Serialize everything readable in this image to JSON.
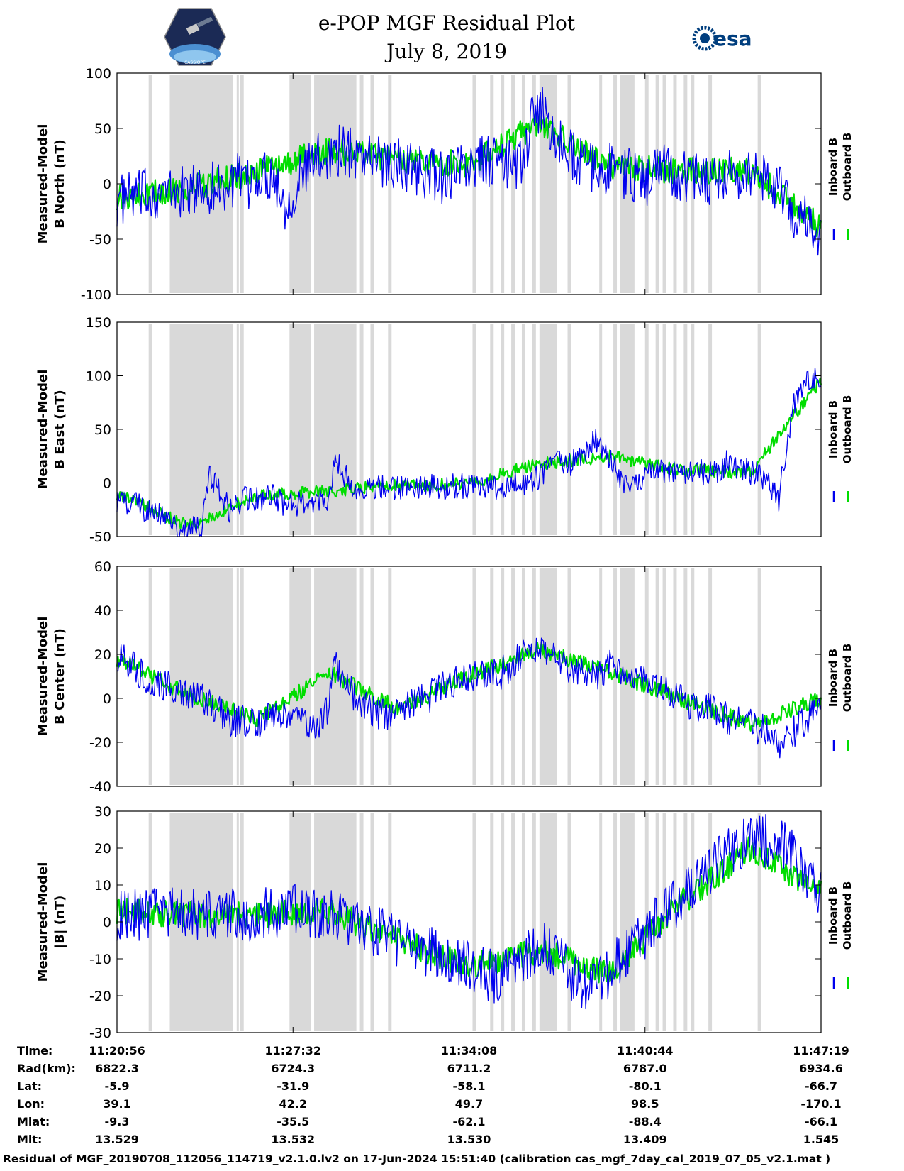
{
  "header": {
    "title": "e-POP MGF Residual Plot",
    "date": "July 8, 2019",
    "logo_left_text": "CASSIOPE",
    "logo_right_text": "esa"
  },
  "colors": {
    "inboard": "#0000ee",
    "outboard": "#00dd00",
    "gap": "#d9d9d9"
  },
  "chart_data": [
    {
      "type": "line",
      "ylabel": [
        "Measured-Model",
        "B North (nT)"
      ],
      "ylim": [
        -100,
        100
      ],
      "yticks": [
        "100",
        "50",
        "0",
        "-50",
        "-100"
      ],
      "legend": [
        "Inboard B",
        "Outboard B"
      ],
      "series": [
        {
          "name": "Inboard B",
          "x": [
            0,
            2,
            4,
            6,
            8,
            10,
            12,
            14,
            16,
            17,
            18,
            19,
            20,
            22,
            24,
            26,
            28,
            30,
            32,
            34,
            36,
            38,
            40,
            42,
            44,
            46,
            48,
            50,
            52,
            54,
            56,
            58,
            59,
            60,
            61,
            62,
            64,
            66,
            68,
            70,
            72,
            74,
            76,
            77,
            78,
            80,
            82,
            84,
            86,
            88,
            90,
            92,
            94,
            95,
            96,
            98,
            100
          ],
          "y": [
            -15,
            -12,
            -10,
            -8,
            -8,
            -7,
            -5,
            -3,
            -2,
            5,
            -5,
            0,
            8,
            10,
            -20,
            5,
            20,
            28,
            30,
            28,
            25,
            20,
            18,
            15,
            10,
            5,
            12,
            15,
            20,
            20,
            15,
            25,
            60,
            70,
            55,
            40,
            30,
            20,
            10,
            15,
            10,
            5,
            0,
            20,
            15,
            5,
            10,
            5,
            8,
            5,
            10,
            5,
            0,
            -20,
            -25,
            -35,
            -45
          ]
        },
        {
          "name": "Outboard B",
          "x": [
            0,
            10,
            20,
            30,
            40,
            50,
            60,
            70,
            80,
            90,
            100
          ],
          "y": [
            -12,
            -5,
            12,
            30,
            22,
            18,
            55,
            15,
            12,
            12,
            -40
          ]
        }
      ]
    },
    {
      "type": "line",
      "ylabel": [
        "Measured-Model",
        "B East (nT)"
      ],
      "ylim": [
        -50,
        150
      ],
      "yticks": [
        "150",
        "100",
        "50",
        "0",
        "-50"
      ],
      "legend": [
        "Inboard B",
        "Outboard B"
      ],
      "series": [
        {
          "name": "Inboard B",
          "x": [
            0,
            2,
            4,
            6,
            8,
            10,
            12,
            13,
            14,
            16,
            18,
            20,
            22,
            24,
            26,
            28,
            30,
            31,
            32,
            34,
            36,
            38,
            40,
            42,
            44,
            46,
            48,
            50,
            52,
            54,
            56,
            58,
            60,
            62,
            64,
            66,
            68,
            70,
            72,
            74,
            76,
            78,
            80,
            82,
            84,
            86,
            87,
            88,
            90,
            92,
            94,
            96,
            98,
            100
          ],
          "y": [
            -15,
            -18,
            -25,
            -30,
            -40,
            -45,
            -40,
            5,
            0,
            -25,
            -15,
            -15,
            -12,
            -20,
            -20,
            -18,
            -15,
            25,
            10,
            -5,
            -5,
            -5,
            -5,
            -5,
            -3,
            -5,
            -3,
            -3,
            -5,
            -5,
            -3,
            0,
            5,
            20,
            15,
            25,
            40,
            20,
            0,
            5,
            10,
            10,
            10,
            10,
            10,
            12,
            25,
            15,
            10,
            5,
            -15,
            70,
            95,
            100
          ]
        },
        {
          "name": "Outboard B",
          "x": [
            0,
            10,
            20,
            30,
            40,
            50,
            60,
            70,
            80,
            90,
            100
          ],
          "y": [
            -10,
            -40,
            -12,
            -8,
            -2,
            -1,
            18,
            25,
            12,
            10,
            95
          ]
        }
      ]
    },
    {
      "type": "line",
      "ylabel": [
        "Measured-Model",
        "B Center (nT)"
      ],
      "ylim": [
        -40,
        60
      ],
      "yticks": [
        "60",
        "40",
        "20",
        "0",
        "-20",
        "-40"
      ],
      "legend": [
        "Inboard B",
        "Outboard B"
      ],
      "series": [
        {
          "name": "Inboard B",
          "x": [
            0,
            2,
            4,
            6,
            8,
            10,
            12,
            14,
            16,
            18,
            20,
            22,
            24,
            26,
            28,
            30,
            31,
            32,
            34,
            36,
            38,
            40,
            42,
            44,
            46,
            48,
            50,
            52,
            54,
            56,
            58,
            60,
            62,
            64,
            66,
            68,
            70,
            72,
            74,
            76,
            78,
            80,
            82,
            84,
            86,
            88,
            90,
            92,
            94,
            96,
            98,
            100
          ],
          "y": [
            20,
            15,
            10,
            5,
            5,
            0,
            0,
            -5,
            -10,
            -10,
            -12,
            -5,
            -10,
            -8,
            -15,
            -5,
            15,
            10,
            0,
            -5,
            -8,
            -5,
            -2,
            0,
            5,
            8,
            10,
            12,
            10,
            15,
            20,
            25,
            20,
            15,
            12,
            10,
            15,
            12,
            10,
            8,
            5,
            0,
            -3,
            -5,
            -8,
            -10,
            -12,
            -15,
            -20,
            -15,
            -10,
            -3
          ]
        },
        {
          "name": "Outboard B",
          "x": [
            0,
            10,
            20,
            30,
            40,
            50,
            60,
            70,
            80,
            90,
            100
          ],
          "y": [
            18,
            2,
            -10,
            12,
            -5,
            10,
            22,
            12,
            0,
            -12,
            0
          ]
        }
      ]
    },
    {
      "type": "line",
      "ylabel": [
        "Measured-Model",
        "|B| (nT)"
      ],
      "ylim": [
        -30,
        30
      ],
      "yticks": [
        "30",
        "20",
        "10",
        "0",
        "-10",
        "-20",
        "-30"
      ],
      "legend": [
        "Inboard B",
        "Outboard B"
      ],
      "series": [
        {
          "name": "Inboard B",
          "x": [
            0,
            4,
            8,
            12,
            16,
            20,
            24,
            28,
            32,
            36,
            40,
            44,
            48,
            50,
            52,
            54,
            56,
            58,
            60,
            62,
            64,
            66,
            68,
            70,
            74,
            78,
            82,
            86,
            90,
            94,
            96,
            98,
            100
          ],
          "y": [
            2,
            2,
            2,
            2,
            2,
            2,
            3,
            3,
            1,
            -2,
            -5,
            -8,
            -10,
            -12,
            -14,
            -15,
            -14,
            -10,
            -7,
            -8,
            -14,
            -17,
            -18,
            -13,
            -5,
            3,
            10,
            17,
            22,
            22,
            18,
            12,
            8
          ]
        },
        {
          "name": "Outboard B",
          "x": [
            0,
            10,
            20,
            30,
            40,
            50,
            60,
            70,
            80,
            90,
            100
          ],
          "y": [
            3,
            2,
            2,
            3,
            -5,
            -12,
            -8,
            -14,
            5,
            20,
            8
          ]
        }
      ]
    }
  ],
  "gap_bands": [
    [
      9,
      10
    ],
    [
      15,
      33
    ],
    [
      34,
      34.5
    ],
    [
      35,
      36
    ],
    [
      49,
      55
    ],
    [
      56,
      68
    ],
    [
      69,
      70
    ],
    [
      72,
      73
    ],
    [
      77,
      78
    ]
  ],
  "gap_bands_2": [
    [
      101,
      102
    ],
    [
      106,
      107
    ],
    [
      109,
      110
    ],
    [
      112,
      113
    ],
    [
      115,
      116
    ],
    [
      118,
      119
    ],
    [
      120,
      125
    ],
    [
      128,
      129
    ],
    [
      137,
      137.8
    ],
    [
      141,
      142
    ],
    [
      143,
      147
    ],
    [
      150,
      151
    ],
    [
      153,
      154
    ],
    [
      155,
      156
    ],
    [
      158,
      159
    ],
    [
      161,
      162
    ],
    [
      163,
      164
    ],
    [
      168,
      169
    ],
    [
      182,
      183
    ]
  ],
  "time_table": {
    "row_labels": [
      "Time:",
      "Rad(km):",
      "Lat:",
      "Lon:",
      "Mlat:",
      "Mlt:"
    ],
    "columns": [
      {
        "time": "11:20:56",
        "rad": "6822.3",
        "lat": "-5.9",
        "lon": "39.1",
        "mlat": "-9.3",
        "mlt": "13.529"
      },
      {
        "time": "11:27:32",
        "rad": "6724.3",
        "lat": "-31.9",
        "lon": "42.2",
        "mlat": "-35.5",
        "mlt": "13.532"
      },
      {
        "time": "11:34:08",
        "rad": "6711.2",
        "lat": "-58.1",
        "lon": "49.7",
        "mlat": "-62.1",
        "mlt": "13.530"
      },
      {
        "time": "11:40:44",
        "rad": "6787.0",
        "lat": "-80.1",
        "lon": "98.5",
        "mlat": "-88.4",
        "mlt": "13.409"
      },
      {
        "time": "11:47:19",
        "rad": "6934.6",
        "lat": "-66.7",
        "lon": "-170.1",
        "mlat": "-66.1",
        "mlt": "1.545"
      }
    ]
  },
  "footer": "Residual of MGF_20190708_112056_114719_v2.1.0.lv2 on 17-Jun-2024 15:51:40 (calibration cas_mgf_7day_cal_2019_07_05_v2.1.mat )"
}
